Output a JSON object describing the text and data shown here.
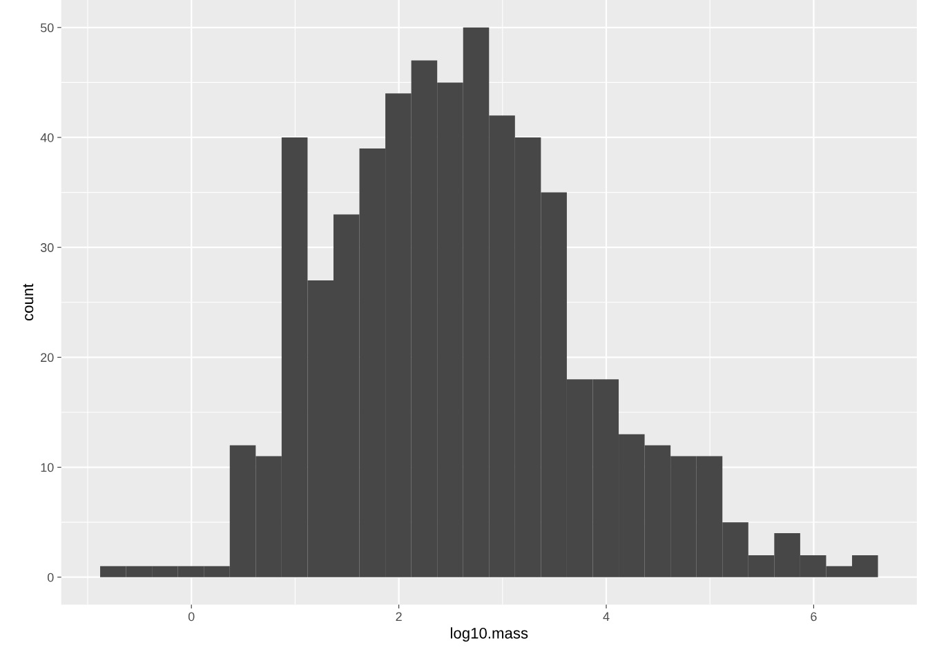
{
  "chart_data": {
    "type": "histogram",
    "xlabel": "log10.mass",
    "ylabel": "count",
    "color": "#474747",
    "bins": [
      -0.88,
      -0.63,
      -0.38,
      -0.13,
      0.12,
      0.37,
      0.62,
      0.87,
      1.12,
      1.37,
      1.62,
      1.87,
      2.12,
      2.37,
      2.62,
      2.87,
      3.12,
      3.37,
      3.62,
      3.87,
      4.12,
      4.37,
      4.62,
      4.87,
      5.12,
      5.37,
      5.62,
      5.87,
      6.12,
      6.37,
      6.62
    ],
    "values": [
      1,
      1,
      1,
      1,
      1,
      12,
      11,
      40,
      27,
      33,
      39,
      44,
      47,
      45,
      50,
      42,
      40,
      35,
      18,
      18,
      13,
      12,
      11,
      11,
      5,
      2,
      4,
      2,
      1,
      2
    ],
    "xlim": [
      -1.255,
      6.995
    ],
    "ylim": [
      -2.5,
      52.5
    ],
    "xticks": [
      0,
      2,
      4,
      6
    ],
    "yticks": [
      0,
      10,
      20,
      30,
      40,
      50
    ],
    "grid": true
  }
}
